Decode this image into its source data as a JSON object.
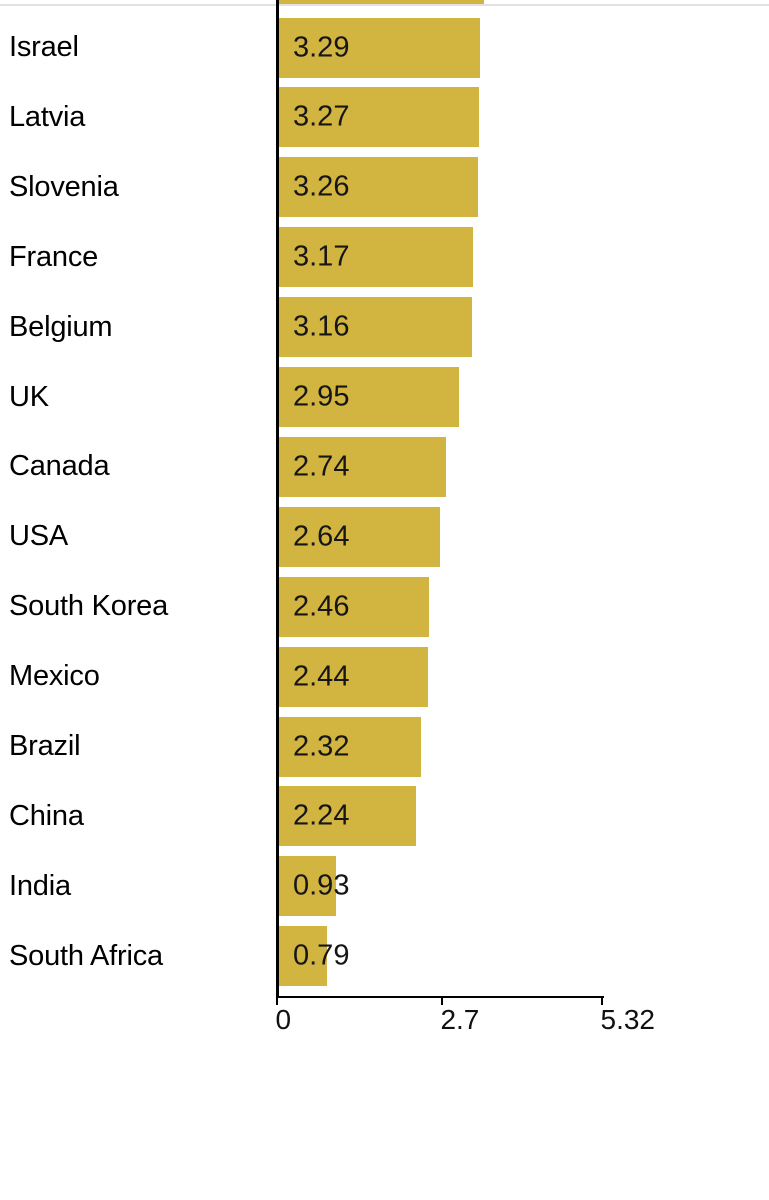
{
  "chart_data": {
    "type": "bar",
    "orientation": "horizontal",
    "title": "",
    "xlabel": "",
    "ylabel": "",
    "categories": [
      "Israel",
      "Latvia",
      "Slovenia",
      "France",
      "Belgium",
      "UK",
      "Canada",
      "USA",
      "South Korea",
      "Mexico",
      "Brazil",
      "China",
      "India",
      "South Africa"
    ],
    "values": [
      3.29,
      3.27,
      3.26,
      3.17,
      3.16,
      2.95,
      2.74,
      2.64,
      2.46,
      2.44,
      2.32,
      2.24,
      0.93,
      0.79
    ],
    "value_label_format": "2-decimals",
    "xlim": [
      0,
      5.32
    ],
    "x_ticks": [
      0,
      2.7,
      5.32
    ],
    "x_tick_labels": [
      "0",
      "2.7",
      "5.32"
    ],
    "grid": false,
    "legend": false,
    "bar_color": "#D2B441",
    "axis_color": "#000000",
    "category_label_color": "#000000",
    "value_label_color": "#161616",
    "top_partial_bar": {
      "clipped": true,
      "estimated_value": 3.35
    }
  },
  "colors": {
    "background": "#ffffff",
    "top_divider": "#e2e2e2"
  }
}
